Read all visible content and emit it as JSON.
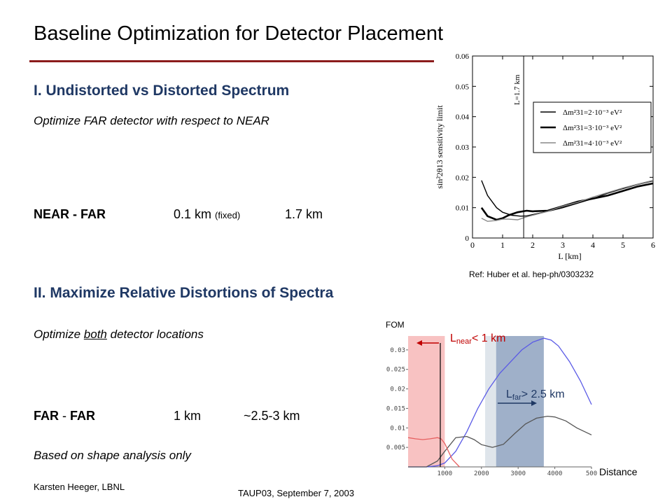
{
  "slide": {
    "title": "Baseline Optimization for Detector Placement",
    "section1": {
      "heading": "I. Undistorted vs Distorted Spectrum",
      "subtitle": "Optimize FAR detector with respect to NEAR",
      "row_label": "NEAR - FAR",
      "near_value": "0.1 km",
      "near_note": "(fixed)",
      "far_value": "1.7 km"
    },
    "section2": {
      "heading": "II. Maximize Relative Distortions of Spectra",
      "subtitle_pre": "Optimize ",
      "subtitle_em": "both",
      "subtitle_post": " detector locations",
      "row_label_a": "FAR",
      "row_dash": "-",
      "row_label_b": "FAR",
      "value_a": "1 km",
      "value_b": "~2.5-3 km",
      "note": "Based on shape analysis only"
    },
    "footer": {
      "author": "Karsten Heeger, LBNL",
      "event": "TAUP03, September 7, 2003"
    },
    "reference": "Ref: Huber et al. hep-ph/0303232"
  },
  "chart_data": [
    {
      "type": "line",
      "xlabel": "L [km]",
      "ylabel": "sin²2θ13 sensitivity limit",
      "xlim": [
        0,
        6
      ],
      "ylim": [
        0,
        0.06
      ],
      "xticks": [
        "0",
        "1",
        "2",
        "3",
        "4",
        "5",
        "6"
      ],
      "yticks": [
        "0",
        "0.01",
        "0.02",
        "0.03",
        "0.04",
        "0.05",
        "0.06"
      ],
      "vline": {
        "x": 1.7,
        "label": "L=1.7 km"
      },
      "legend_position": "center-right",
      "series": [
        {
          "name": "Δm²31=2·10⁻³ eV²",
          "color": "#000000",
          "style": "thin",
          "x": [
            0.3,
            0.5,
            0.8,
            1.0,
            1.3,
            1.6,
            1.8,
            2.0,
            2.5,
            3.0,
            3.5,
            4.0,
            4.5,
            5.0,
            5.5,
            6.0
          ],
          "y": [
            0.019,
            0.014,
            0.01,
            0.0085,
            0.0075,
            0.0072,
            0.0073,
            0.0077,
            0.0088,
            0.01,
            0.0115,
            0.013,
            0.0148,
            0.0163,
            0.0177,
            0.0188
          ]
        },
        {
          "name": "Δm²31=3·10⁻³ eV²",
          "color": "#000000",
          "style": "thick",
          "x": [
            0.3,
            0.5,
            0.8,
            1.0,
            1.2,
            1.5,
            1.8,
            2.0,
            2.5,
            3.0,
            3.5,
            4.0,
            4.5,
            5.0,
            5.5,
            6.0
          ],
          "y": [
            0.01,
            0.0072,
            0.006,
            0.0065,
            0.0075,
            0.0085,
            0.009,
            0.0088,
            0.009,
            0.0105,
            0.012,
            0.013,
            0.014,
            0.0155,
            0.017,
            0.018
          ]
        },
        {
          "name": "Δm²31=4·10⁻³ eV²",
          "color": "#888888",
          "style": "thin",
          "x": [
            0.3,
            0.5,
            0.8,
            1.0,
            1.2,
            1.5,
            1.8,
            2.0,
            2.5,
            3.0,
            3.5,
            4.0,
            4.5,
            5.0,
            5.5,
            6.0
          ],
          "y": [
            0.0065,
            0.0055,
            0.0058,
            0.0062,
            0.0062,
            0.006,
            0.007,
            0.0075,
            0.0088,
            0.0105,
            0.0118,
            0.0135,
            0.015,
            0.0165,
            0.0178,
            0.019
          ]
        }
      ]
    },
    {
      "type": "line",
      "ylabel": "FOM",
      "xlabel": "Distance",
      "xlim": [
        0,
        5000
      ],
      "ylim": [
        0,
        0.035
      ],
      "xticks": [
        "1000",
        "2000",
        "3000",
        "4000",
        "500"
      ],
      "yticks": [
        "0.005",
        "0.01",
        "0.015",
        "0.02",
        "0.025",
        "0.03"
      ],
      "annotations": [
        {
          "text_main": "L",
          "text_sub": "near",
          "text_rest": "< 1 km",
          "color": "#c00000"
        },
        {
          "text_main": "L",
          "text_sub": "far",
          "text_rest": "> 2.5 km",
          "color": "#1f3864"
        }
      ],
      "regions": [
        {
          "from": 0,
          "to": 1000,
          "color": "#f7b7b7"
        },
        {
          "from": 2100,
          "to": 2400,
          "color": "#d9e0e8"
        },
        {
          "from": 2400,
          "to": 3700,
          "color": "#8ea2c0"
        }
      ],
      "series": [
        {
          "color": "#5a5ae6",
          "x": [
            0,
            500,
            800,
            1000,
            1300,
            1600,
            1900,
            2200,
            2500,
            2800,
            3100,
            3400,
            3700,
            3900,
            4100,
            4400,
            4700,
            5000
          ],
          "y": [
            0,
            0,
            0.0003,
            0.001,
            0.004,
            0.009,
            0.015,
            0.02,
            0.024,
            0.027,
            0.03,
            0.032,
            0.033,
            0.0325,
            0.031,
            0.027,
            0.022,
            0.016
          ]
        },
        {
          "color": "#555555",
          "x": [
            0,
            500,
            800,
            1000,
            1300,
            1600,
            1800,
            2000,
            2300,
            2600,
            2900,
            3200,
            3500,
            3800,
            4000,
            4300,
            4600,
            5000
          ],
          "y": [
            0,
            0,
            0.0015,
            0.004,
            0.0075,
            0.0078,
            0.007,
            0.0057,
            0.005,
            0.0058,
            0.0085,
            0.011,
            0.0125,
            0.013,
            0.0128,
            0.0118,
            0.01,
            0.0082
          ]
        },
        {
          "color": "#e66060",
          "x": [
            0,
            200,
            400,
            600,
            800,
            900,
            1000,
            1100,
            1200,
            1400
          ],
          "y": [
            0.0075,
            0.0072,
            0.007,
            0.0072,
            0.0075,
            0.0072,
            0.006,
            0.004,
            0.002,
            0.0
          ]
        }
      ]
    }
  ]
}
